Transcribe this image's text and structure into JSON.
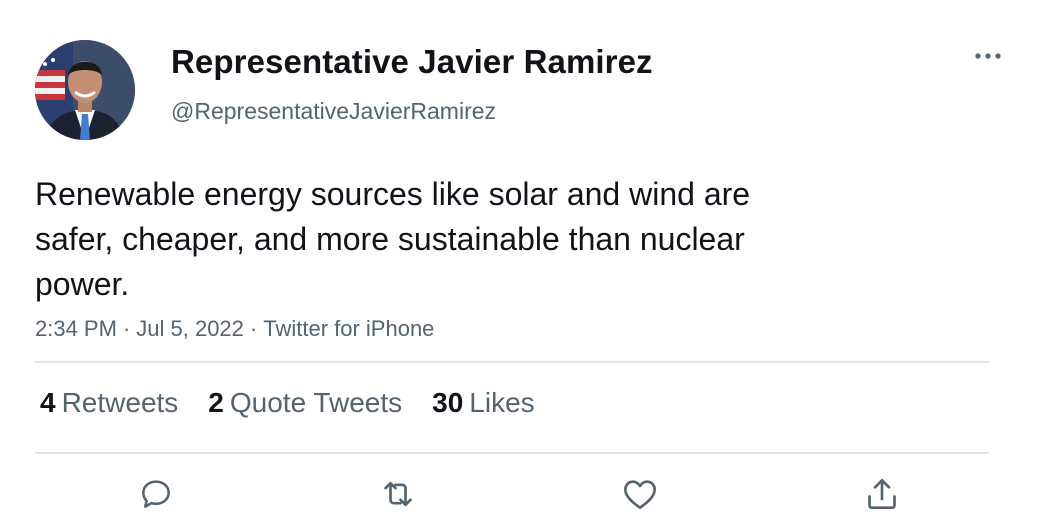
{
  "author": {
    "display_name": "Representative Javier Ramirez",
    "handle": "@RepresentativeJavierRamirez"
  },
  "tweet": {
    "text": "Renewable energy sources like solar and wind are\nsafer, cheaper, and more sustainable than nuclear\npower.",
    "time": "2:34 PM",
    "date": "Jul 5, 2022",
    "source": "Twitter for iPhone",
    "separator": "·"
  },
  "stats": {
    "retweets": {
      "count": "4",
      "label": "Retweets"
    },
    "quote_tweets": {
      "count": "2",
      "label": "Quote Tweets"
    },
    "likes": {
      "count": "30",
      "label": "Likes"
    }
  },
  "actions": {
    "reply_icon": "reply-icon",
    "retweet_icon": "retweet-icon",
    "like_icon": "heart-icon",
    "share_icon": "share-icon"
  },
  "colors": {
    "text_primary": "#0f1419",
    "text_secondary": "#536471",
    "divider": "#dfe3e7"
  }
}
